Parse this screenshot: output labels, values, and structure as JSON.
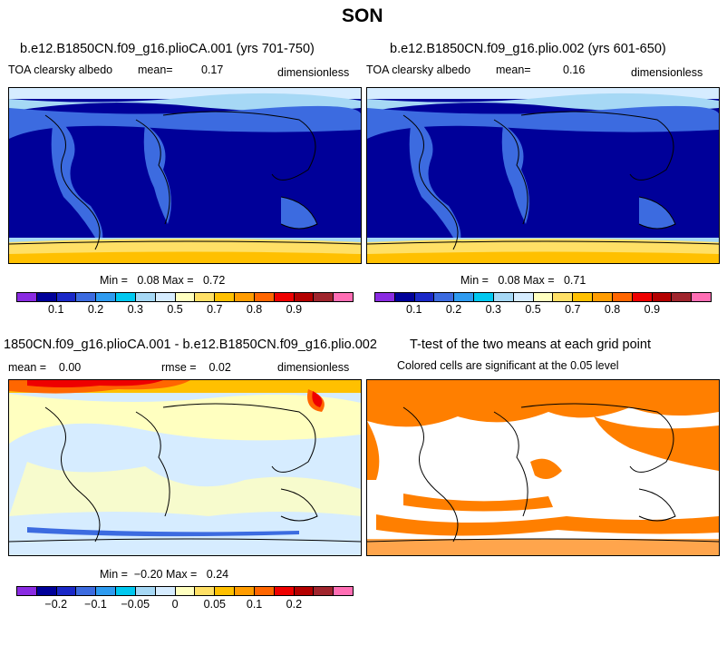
{
  "figure": {
    "title": "SON"
  },
  "panels": [
    {
      "title": "b.e12.B1850CN.f09_g16.plioCA.001 (yrs 701-750)",
      "variable": "TOA clearsky albedo",
      "mean_label": "mean=",
      "mean_value": "0.17",
      "units": "dimensionless",
      "minmax": "Min =   0.08 Max =   0.72"
    },
    {
      "title": "b.e12.B1850CN.f09_g16.plio.002 (yrs 601-650)",
      "variable": "TOA clearsky albedo",
      "mean_label": "mean=",
      "mean_value": "0.16",
      "units": "dimensionless",
      "minmax": "Min =   0.08 Max =   0.71"
    },
    {
      "title": "1850CN.f09_g16.plioCA.001 - b.e12.B1850CN.f09_g16.plio.002",
      "mean_text": "mean =    0.00",
      "rmse_text": "rmse =    0.02",
      "units": "dimensionless",
      "minmax": "Min =  −0.20 Max =   0.24"
    },
    {
      "title": "T-test of the two means at each grid point",
      "subtitle": "Colored cells are significant at the 0.05 level"
    }
  ],
  "colorbars": {
    "albedo": {
      "colors": [
        "#8a2be2",
        "#000099",
        "#1a28c8",
        "#3c6be0",
        "#2e9bf0",
        "#00c8f0",
        "#a6d8f5",
        "#d6ecff",
        "#ffffc0",
        "#ffe066",
        "#ffc000",
        "#ff9c00",
        "#ff6600",
        "#ee0000",
        "#b40000",
        "#a0252d",
        "#ff6eb4"
      ],
      "ticks": [
        "0.1",
        "0.2",
        "0.3",
        "0.5",
        "0.7",
        "0.8",
        "0.9"
      ]
    },
    "diff": {
      "colors": [
        "#8a2be2",
        "#000099",
        "#1a28c8",
        "#3c6be0",
        "#2e9bf0",
        "#00c8f0",
        "#a6d8f5",
        "#d6ecff",
        "#ffffc0",
        "#ffe066",
        "#ffc000",
        "#ff9c00",
        "#ff6600",
        "#ee0000",
        "#b40000",
        "#a0252d",
        "#ff6eb4"
      ],
      "ticks": [
        "−0.2",
        "−0.1",
        "−0.05",
        "0",
        "0.05",
        "0.1",
        "0.2"
      ]
    }
  },
  "chart_data": [
    {
      "type": "heatmap",
      "title": "b.e12.B1850CN.f09_g16.plioCA.001 (yrs 701-750)",
      "variable": "TOA clearsky albedo",
      "mean": 0.17,
      "min": 0.08,
      "max": 0.72,
      "units": "dimensionless",
      "colorbar_ticks": [
        0.1,
        0.2,
        0.3,
        0.5,
        0.7,
        0.8,
        0.9
      ]
    },
    {
      "type": "heatmap",
      "title": "b.e12.B1850CN.f09_g16.plio.002 (yrs 601-650)",
      "variable": "TOA clearsky albedo",
      "mean": 0.16,
      "min": 0.08,
      "max": 0.71,
      "units": "dimensionless",
      "colorbar_ticks": [
        0.1,
        0.2,
        0.3,
        0.5,
        0.7,
        0.8,
        0.9
      ]
    },
    {
      "type": "heatmap",
      "title": "1850CN.f09_g16.plioCA.001 - b.e12.B1850CN.f09_g16.plio.002",
      "mean": 0.0,
      "rmse": 0.02,
      "min": -0.2,
      "max": 0.24,
      "units": "dimensionless",
      "colorbar_ticks": [
        -0.2,
        -0.1,
        -0.05,
        0,
        0.05,
        0.1,
        0.2
      ]
    },
    {
      "type": "heatmap",
      "title": "T-test of the two means at each grid point",
      "subtitle": "Colored cells are significant at the 0.05 level",
      "significance_level": 0.05,
      "significant_color": "#ff7f00"
    }
  ]
}
